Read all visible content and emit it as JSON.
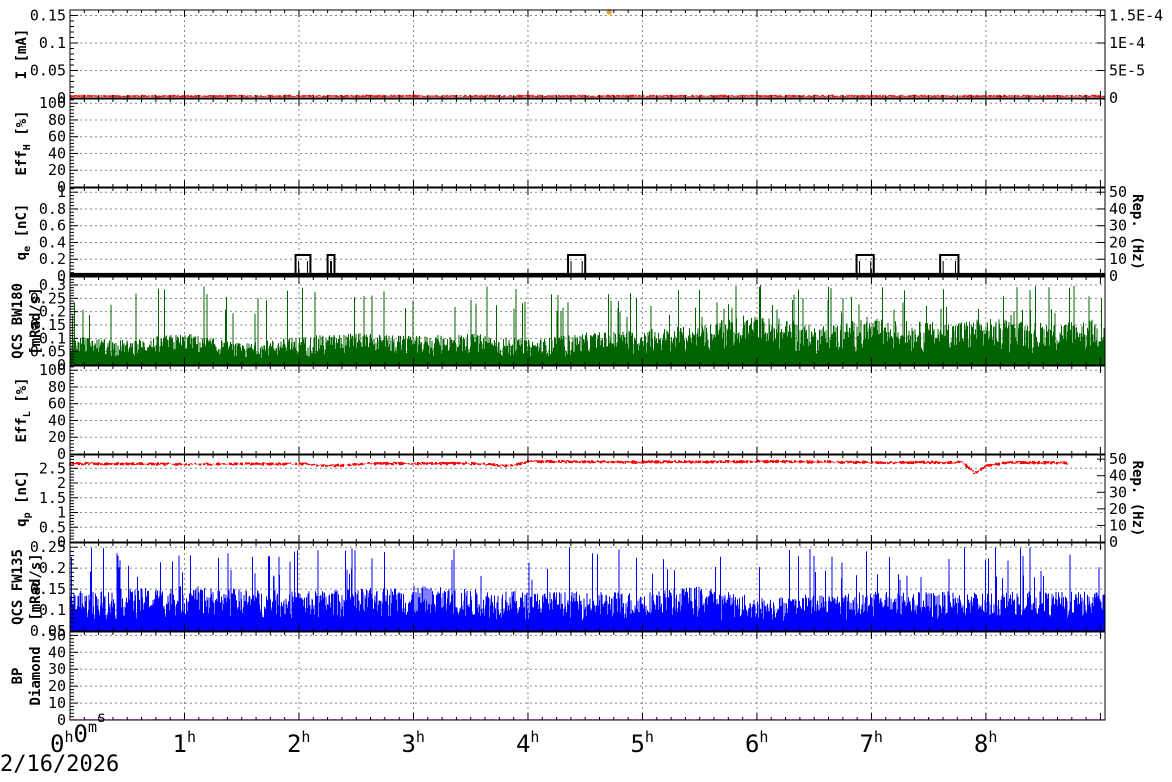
{
  "date": "2/16/2026",
  "colors": {
    "current": "#ff0000",
    "qcs_bw": "#006400",
    "qp": "#ff0000",
    "qcs_fw": "#0000ff",
    "bp": "#ff00ff",
    "qe": "#000000",
    "marker": "#f0a020"
  },
  "x_axis": {
    "range_hours": [
      0,
      9.04
    ],
    "ticks": [
      {
        "hour": 0,
        "main": "0",
        "parts": [
          [
            "h",
            "0"
          ],
          [
            "m",
            "0"
          ],
          [
            "s",
            ""
          ]
        ]
      },
      {
        "hour": 1,
        "main": "1",
        "sup": "h"
      },
      {
        "hour": 2,
        "main": "2",
        "sup": "h"
      },
      {
        "hour": 3,
        "main": "3",
        "sup": "h"
      },
      {
        "hour": 4,
        "main": "4",
        "sup": "h"
      },
      {
        "hour": 5,
        "main": "5",
        "sup": "h"
      },
      {
        "hour": 6,
        "main": "6",
        "sup": "h"
      },
      {
        "hour": 7,
        "main": "7",
        "sup": "h"
      },
      {
        "hour": 8,
        "main": "8",
        "sup": "h"
      }
    ]
  },
  "chart_data": [
    {
      "id": "current",
      "type": "line",
      "ylabel": "I [mA]",
      "ylim": [
        0,
        0.16
      ],
      "yticks": [
        "0",
        "0.05",
        "0.1",
        "0.15"
      ],
      "ytick_values": [
        0,
        0.05,
        0.1,
        0.15
      ],
      "y2ticks": [
        "0",
        "5E-5",
        "1E-4",
        "1.5E-4"
      ],
      "y2tick_values": [
        0,
        5e-05,
        0.0001,
        0.00015
      ],
      "y2lim": [
        0,
        0.00016
      ],
      "series": [
        {
          "color": "#ff0000",
          "baseline": 0.003,
          "noise": 0.003
        }
      ],
      "markers": [
        {
          "x": 4.71,
          "y": 0.156,
          "color": "#f0a020"
        }
      ]
    },
    {
      "id": "eff_h",
      "type": "line",
      "ylabel": "EffH [%]",
      "ylabel_main": "Eff",
      "ylabel_sub": "H",
      "ylabel_tail": " [%]",
      "ylim": [
        0,
        105
      ],
      "yticks": [
        "0",
        "20",
        "40",
        "60",
        "80",
        "100"
      ],
      "ytick_values": [
        0,
        20,
        40,
        60,
        80,
        100
      ],
      "series": []
    },
    {
      "id": "qe",
      "type": "line",
      "ylabel": "qe [nC]",
      "ylabel_main": "q",
      "ylabel_sub": "e",
      "ylabel_tail": " [nC]",
      "ylim": [
        0,
        1.05
      ],
      "yticks": [
        "0",
        "0.2",
        "0.4",
        "0.6",
        "0.8",
        "1"
      ],
      "ytick_values": [
        0,
        0.2,
        0.4,
        0.6,
        0.8,
        1
      ],
      "y2label": "Rep. (Hz)",
      "y2ticks": [
        "0",
        "10",
        "20",
        "30",
        "40",
        "50"
      ],
      "y2tick_values": [
        0,
        10,
        20,
        30,
        40,
        50
      ],
      "y2lim": [
        0,
        52.5
      ],
      "series": [
        {
          "color": "#000000",
          "baseline": 0.02,
          "pulses": [
            [
              1.97,
              2.1
            ],
            [
              2.25,
              2.31
            ],
            [
              4.35,
              4.5
            ],
            [
              6.87,
              7.02
            ],
            [
              7.6,
              7.76
            ]
          ],
          "pulse_level": 0.25
        }
      ]
    },
    {
      "id": "qcs_bw",
      "type": "area",
      "ylabel": "QCS BW180 [mRad/s]",
      "ylabel_line1": "QCS BW180",
      "ylabel_line2": "[mRad/s]",
      "ylim": [
        0,
        0.33
      ],
      "yticks": [
        "0",
        "0.05",
        "0.1",
        "0.15",
        "0.2",
        "0.25",
        "0.3"
      ],
      "ytick_values": [
        0,
        0.05,
        0.1,
        0.15,
        0.2,
        0.25,
        0.3
      ],
      "series": [
        {
          "color": "#006400",
          "level": [
            [
              0,
              0.08
            ],
            [
              0.5,
              0.07
            ],
            [
              1.0,
              0.09
            ],
            [
              1.5,
              0.06
            ],
            [
              2.0,
              0.08
            ],
            [
              2.5,
              0.09
            ],
            [
              3.0,
              0.08
            ],
            [
              3.5,
              0.09
            ],
            [
              4.0,
              0.07
            ],
            [
              4.5,
              0.09
            ],
            [
              5.0,
              0.1
            ],
            [
              5.5,
              0.11
            ],
            [
              5.9,
              0.14
            ],
            [
              6.2,
              0.13
            ],
            [
              6.5,
              0.11
            ],
            [
              7.0,
              0.13
            ],
            [
              7.5,
              0.12
            ],
            [
              8.0,
              0.13
            ],
            [
              8.5,
              0.12
            ],
            [
              9.04,
              0.13
            ]
          ],
          "peak": 0.3
        }
      ]
    },
    {
      "id": "eff_l",
      "type": "line",
      "ylabel": "EffL [%]",
      "ylabel_main": "Eff",
      "ylabel_sub": "L",
      "ylabel_tail": " [%]",
      "ylim": [
        0,
        105
      ],
      "yticks": [
        "0",
        "20",
        "40",
        "60",
        "80",
        "100"
      ],
      "ytick_values": [
        0,
        20,
        40,
        60,
        80,
        100
      ],
      "series": []
    },
    {
      "id": "qp",
      "type": "line",
      "ylabel": "qp [nC]",
      "ylabel_main": "q",
      "ylabel_sub": "p",
      "ylabel_tail": " [nC]",
      "ylim": [
        0,
        2.95
      ],
      "yticks": [
        "0",
        "0.5",
        "1",
        "1.5",
        "2",
        "2.5"
      ],
      "ytick_values": [
        0,
        0.5,
        1,
        1.5,
        2,
        2.5
      ],
      "y2label": "Rep. (Hz)",
      "y2ticks": [
        "0",
        "10",
        "20",
        "30",
        "40",
        "50"
      ],
      "y2tick_values": [
        0,
        10,
        20,
        30,
        40,
        50
      ],
      "y2lim": [
        0,
        52.5
      ],
      "series": [
        {
          "color": "#ff0000",
          "level": [
            [
              0,
              2.68
            ],
            [
              1.0,
              2.66
            ],
            [
              2.0,
              2.67
            ],
            [
              2.3,
              2.6
            ],
            [
              2.6,
              2.68
            ],
            [
              3.5,
              2.68
            ],
            [
              3.85,
              2.6
            ],
            [
              4.0,
              2.75
            ],
            [
              5.0,
              2.73
            ],
            [
              6.0,
              2.75
            ],
            [
              7.0,
              2.72
            ],
            [
              7.8,
              2.72
            ],
            [
              7.9,
              2.35
            ],
            [
              8.0,
              2.6
            ],
            [
              8.2,
              2.72
            ],
            [
              8.7,
              2.7
            ]
          ],
          "end": 8.72
        }
      ]
    },
    {
      "id": "qcs_fw",
      "type": "area",
      "ylabel": "QCS FW135 [mRad/s]",
      "ylabel_line1": "QCS FW135",
      "ylabel_line2": "[mRad/s]",
      "ylim": [
        0.05,
        0.26
      ],
      "yticks": [
        "0.05",
        "0.1",
        "0.15",
        "0.2",
        "0.25"
      ],
      "ytick_values": [
        0.05,
        0.1,
        0.15,
        0.2,
        0.25
      ],
      "series": [
        {
          "color": "#0000ff",
          "level": [
            [
              0,
              0.12
            ],
            [
              1.0,
              0.13
            ],
            [
              2.0,
              0.12
            ],
            [
              3.0,
              0.13
            ],
            [
              4.0,
              0.12
            ],
            [
              5.0,
              0.12
            ],
            [
              5.5,
              0.13
            ],
            [
              6.0,
              0.11
            ],
            [
              7.0,
              0.12
            ],
            [
              8.0,
              0.12
            ],
            [
              9.04,
              0.12
            ]
          ],
          "peak": 0.25
        }
      ]
    },
    {
      "id": "bp",
      "type": "line",
      "ylabel": "BP Diamond",
      "ylabel_line1": "BP",
      "ylabel_line2": "Diamond",
      "ylim": [
        0,
        52
      ],
      "yticks": [
        "0",
        "10",
        "20",
        "30",
        "40",
        "50"
      ],
      "ytick_values": [
        0,
        10,
        20,
        30,
        40,
        50
      ],
      "series": [
        {
          "color": "#ff00ff",
          "baseline": 0.3,
          "noise": 0.2
        }
      ]
    }
  ]
}
